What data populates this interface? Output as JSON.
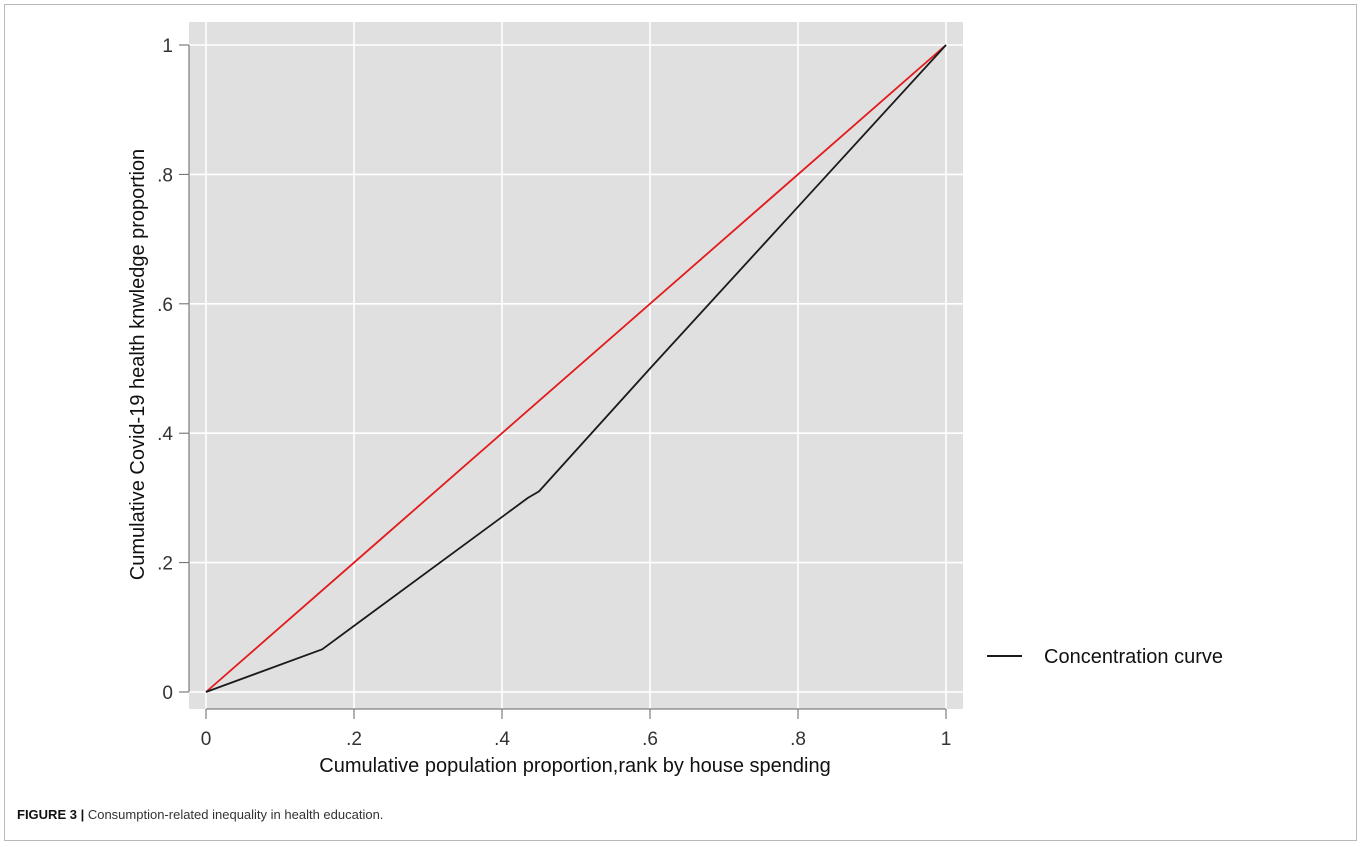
{
  "figure": {
    "label": "FIGURE 3 |",
    "caption": "Consumption-related inequality in health education."
  },
  "chart_data": {
    "type": "line",
    "xlabel": "Cumulative population proportion,rank by house spending",
    "ylabel": "Cumulative Covid-19 health knwledge proportion",
    "xlim": [
      0,
      1
    ],
    "ylim": [
      0,
      1
    ],
    "x_ticks": [
      {
        "value": 0,
        "label": "0"
      },
      {
        "value": 0.2,
        "label": ".2"
      },
      {
        "value": 0.4,
        "label": ".4"
      },
      {
        "value": 0.6,
        "label": ".6"
      },
      {
        "value": 0.8,
        "label": ".8"
      },
      {
        "value": 1,
        "label": "1"
      }
    ],
    "y_ticks": [
      {
        "value": 0,
        "label": "0"
      },
      {
        "value": 0.2,
        "label": ".2"
      },
      {
        "value": 0.4,
        "label": ".4"
      },
      {
        "value": 0.6,
        "label": ".6"
      },
      {
        "value": 0.8,
        "label": ".8"
      },
      {
        "value": 1,
        "label": "1"
      }
    ],
    "grid": true,
    "background": "#e0e0e0",
    "legend_position": "right",
    "series": [
      {
        "name": "Concentration curve",
        "color": "#1a1a1a",
        "in_legend": true,
        "x": [
          0,
          0.157,
          0.435,
          0.45,
          0.6,
          0.8,
          1
        ],
        "y": [
          0,
          0.066,
          0.3,
          0.31,
          0.5,
          0.75,
          1
        ]
      },
      {
        "color": "#e31a1c",
        "in_legend": false,
        "x": [
          0,
          1
        ],
        "y": [
          0,
          1
        ]
      }
    ]
  }
}
